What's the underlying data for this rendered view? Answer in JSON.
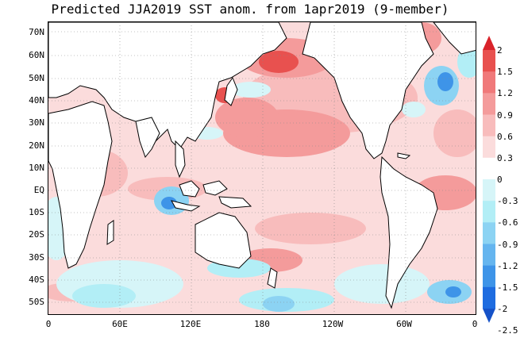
{
  "title": "Predicted JJA2019 SST anom. from 1apr2019 (9-member)",
  "map": {
    "lat_labels": [
      "70N",
      "60N",
      "50N",
      "40N",
      "30N",
      "20N",
      "10N",
      "EQ",
      "10S",
      "20S",
      "30S",
      "40S",
      "50S"
    ],
    "lon_labels": [
      "0",
      "60E",
      "120E",
      "180",
      "120W",
      "60W",
      "0"
    ],
    "lat_range": [
      -56,
      75
    ],
    "lon_range": [
      0,
      360
    ]
  },
  "colorbar": {
    "levels": [
      "2",
      "1.5",
      "1.2",
      "0.9",
      "0.6",
      "0.3",
      "0",
      "-0.3",
      "-0.6",
      "-0.9",
      "-1.2",
      "-1.5",
      "-2",
      "-2.5"
    ],
    "colors": [
      "#d9232a",
      "#e8514f",
      "#f0797a",
      "#f49b9b",
      "#f8bcbc",
      "#fbdcdc",
      "#ffffff",
      "#d6f5f8",
      "#b2eef6",
      "#8cd3f3",
      "#65b5ef",
      "#3e94e8",
      "#1e6ce0",
      "#1552c8"
    ]
  }
}
